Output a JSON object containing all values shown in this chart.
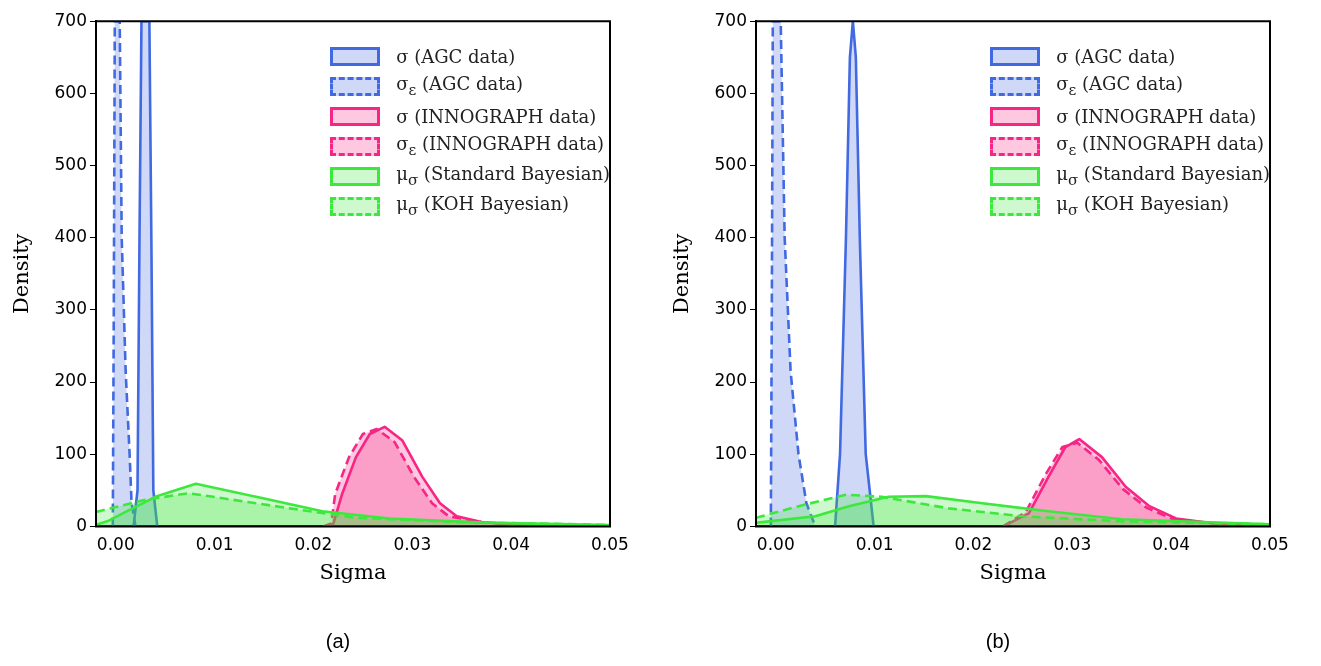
{
  "chart_data": [
    {
      "type": "area",
      "xlabel": "Sigma",
      "ylabel": "Density",
      "xlim": [
        -0.002,
        0.05
      ],
      "ylim": [
        0,
        700
      ],
      "xticks": [
        {
          "value": 0,
          "label": "0.00"
        },
        {
          "value": 0.01,
          "label": "0.01"
        },
        {
          "value": 0.02,
          "label": "0.02"
        },
        {
          "value": 0.03,
          "label": "0.03"
        },
        {
          "value": 0.04,
          "label": "0.04"
        },
        {
          "value": 0.05,
          "label": "0.05"
        }
      ],
      "yticks": [
        0,
        100,
        200,
        300,
        400,
        500,
        600,
        700
      ],
      "grid": false,
      "legend": "top right",
      "annotations": [
        "(a)"
      ],
      "series": [
        {
          "name": "σ (AGC data)",
          "color": "#4169e1",
          "line_style": "solid",
          "x": [
            0.0018,
            0.0022,
            0.0024,
            0.0026,
            0.0034,
            0.0036,
            0.0038,
            0.0042
          ],
          "values": [
            0,
            50,
            400,
            700,
            700,
            400,
            50,
            0
          ]
        },
        {
          "name": "σ$_{ε}$ (AGC data)",
          "color": "#4169e1",
          "line_style": "dashed",
          "x": [
            -0.0003,
            -0.0002,
            -0.0001,
            0.0004,
            0.0006,
            0.001,
            0.0014,
            0.0016,
            0.002
          ],
          "values": [
            0,
            300,
            700,
            700,
            400,
            215,
            100,
            32,
            0
          ]
        },
        {
          "name": "σ (INNOGRAPH data)",
          "color": "#f72585",
          "line_style": "solid",
          "x": [
            0.021,
            0.022,
            0.0229,
            0.0243,
            0.0257,
            0.0272,
            0.029,
            0.031,
            0.0328,
            0.0345,
            0.037,
            0.04,
            0.045,
            0.05
          ],
          "values": [
            0,
            3,
            45,
            96,
            128,
            138,
            119,
            69,
            32,
            14,
            6,
            3,
            2,
            1
          ]
        },
        {
          "name": "σ$_{ε}$ (INNOGRAPH data)",
          "color": "#f72585",
          "line_style": "dashed",
          "x": [
            0.021,
            0.0218,
            0.0222,
            0.0236,
            0.025,
            0.0264,
            0.0282,
            0.0302,
            0.032,
            0.0337,
            0.037,
            0.04,
            0.045,
            0.05
          ],
          "values": [
            0,
            4,
            45,
            96,
            128,
            135,
            117,
            68,
            32,
            14,
            6,
            3,
            2,
            1
          ]
        },
        {
          "name": "μ$_{σ}$ (Standard Bayesian)",
          "color": "#3de83d",
          "line_style": "solid",
          "x": [
            -0.002,
            -0.0007,
            0.001,
            0.004,
            0.0081,
            0.0142,
            0.0209,
            0.0277,
            0.0378,
            0.05
          ],
          "values": [
            2,
            8,
            20,
            41,
            59,
            41,
            21,
            11,
            5,
            2
          ]
        },
        {
          "name": "μ$_{σ}$ (KOH Bayesian)",
          "color": "#3de83d",
          "line_style": "dashed",
          "x": [
            -0.002,
            0.003,
            0.0074,
            0.0176,
            0.0243,
            0.035,
            0.05
          ],
          "values": [
            20,
            37,
            46,
            25,
            12,
            6,
            2
          ]
        }
      ]
    },
    {
      "type": "area",
      "xlabel": "Sigma",
      "ylabel": "Density",
      "xlim": [
        -0.002,
        0.05
      ],
      "ylim": [
        0,
        700
      ],
      "xticks": [
        {
          "value": 0,
          "label": "0.00"
        },
        {
          "value": 0.01,
          "label": "0.01"
        },
        {
          "value": 0.02,
          "label": "0.02"
        },
        {
          "value": 0.03,
          "label": "0.03"
        },
        {
          "value": 0.04,
          "label": "0.04"
        },
        {
          "value": 0.05,
          "label": "0.05"
        }
      ],
      "yticks": [
        0,
        100,
        200,
        300,
        400,
        500,
        600,
        700
      ],
      "grid": false,
      "legend": "top right",
      "annotations": [
        "(b)"
      ],
      "series": [
        {
          "name": "σ (AGC data)",
          "color": "#4169e1",
          "line_style": "solid",
          "x": [
            0.006,
            0.0065,
            0.0071,
            0.0075,
            0.0078,
            0.0081,
            0.0085,
            0.0091,
            0.0099
          ],
          "values": [
            0,
            100,
            400,
            650,
            700,
            650,
            400,
            100,
            0
          ]
        },
        {
          "name": "σ$_{ε}$ (AGC data)",
          "color": "#4169e1",
          "line_style": "dashed",
          "x": [
            -0.0005,
            -0.0004,
            -0.0003,
            0.0005,
            0.0009,
            0.0015,
            0.0023,
            0.0031,
            0.004
          ],
          "values": [
            0,
            300,
            700,
            700,
            400,
            215,
            100,
            32,
            0
          ]
        },
        {
          "name": "σ (INNOGRAPH data)",
          "color": "#f72585",
          "line_style": "solid",
          "x": [
            0.023,
            0.0256,
            0.0276,
            0.0293,
            0.0307,
            0.033,
            0.0354,
            0.0378,
            0.0405,
            0.045,
            0.05
          ],
          "values": [
            0,
            18,
            69,
            110,
            121,
            96,
            55,
            28,
            11,
            3,
            2
          ]
        },
        {
          "name": "σ$_{ε}$ (INNOGRAPH data)",
          "color": "#f72585",
          "line_style": "dashed",
          "x": [
            0.023,
            0.0253,
            0.0273,
            0.029,
            0.0305,
            0.0327,
            0.0351,
            0.0375,
            0.0402,
            0.045,
            0.05
          ],
          "values": [
            0,
            20,
            72,
            110,
            116,
            92,
            52,
            26,
            10,
            3,
            2
          ]
        },
        {
          "name": "μ$_{σ}$ (Standard Bayesian)",
          "color": "#3de83d",
          "line_style": "solid",
          "x": [
            -0.002,
            0.004,
            0.0074,
            0.0114,
            0.0152,
            0.0209,
            0.0276,
            0.035,
            0.05
          ],
          "values": [
            5,
            14,
            28,
            41,
            42,
            32,
            21,
            10,
            3
          ]
        },
        {
          "name": "μ$_{σ}$ (KOH Bayesian)",
          "color": "#3de83d",
          "line_style": "dashed",
          "x": [
            -0.002,
            0.0023,
            0.0071,
            0.0107,
            0.0175,
            0.025,
            0.035,
            0.05
          ],
          "values": [
            12,
            28,
            44,
            41,
            25,
            14,
            7,
            3
          ]
        }
      ]
    }
  ]
}
